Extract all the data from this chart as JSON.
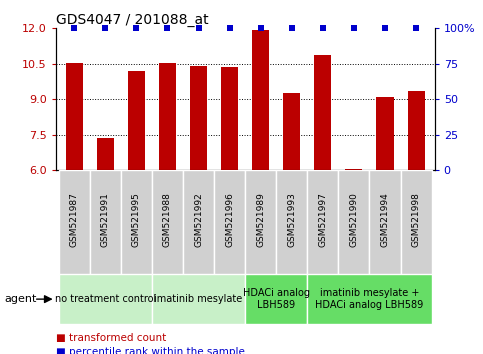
{
  "title": "GDS4047 / 201088_at",
  "samples": [
    "GSM521987",
    "GSM521991",
    "GSM521995",
    "GSM521988",
    "GSM521992",
    "GSM521996",
    "GSM521989",
    "GSM521993",
    "GSM521997",
    "GSM521990",
    "GSM521994",
    "GSM521998"
  ],
  "bar_values": [
    10.55,
    7.35,
    10.2,
    10.52,
    10.42,
    10.37,
    11.95,
    9.25,
    10.85,
    6.05,
    9.07,
    9.35
  ],
  "percentile_values": [
    100,
    100,
    100,
    100,
    100,
    100,
    100,
    100,
    100,
    100,
    100,
    100
  ],
  "bar_color": "#bb0000",
  "percentile_color": "#0000cc",
  "ylim_left": [
    6,
    12
  ],
  "ylim_right": [
    0,
    100
  ],
  "yticks_left": [
    6,
    7.5,
    9,
    10.5,
    12
  ],
  "yticks_right": [
    0,
    25,
    50,
    75,
    100
  ],
  "agent_groups": [
    {
      "label": "no treatment control",
      "start": 0,
      "end": 3,
      "color": "#c8f0c8"
    },
    {
      "label": "imatinib mesylate",
      "start": 3,
      "end": 6,
      "color": "#c8f0c8"
    },
    {
      "label": "HDACi analog\nLBH589",
      "start": 6,
      "end": 8,
      "color": "#66dd66"
    },
    {
      "label": "imatinib mesylate +\nHDACi analog LBH589",
      "start": 8,
      "end": 12,
      "color": "#66dd66"
    }
  ],
  "bar_width": 0.55,
  "label_box_color": "#d0d0d0",
  "label_box_edge_color": "#ffffff",
  "agent_label_fontsize": 7.0,
  "sample_label_fontsize": 6.5,
  "legend_square_size": 7
}
